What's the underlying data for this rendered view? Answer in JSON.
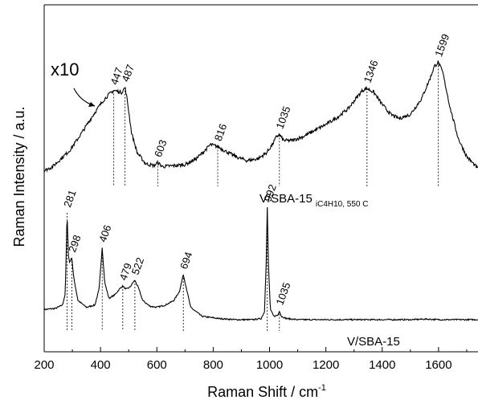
{
  "chart_data": {
    "type": "line",
    "xlabel_main": "Raman Shift / cm",
    "xlabel_sup": "-1",
    "ylabel": "Raman Intensity / a.u.",
    "xlim": [
      200,
      1740
    ],
    "x_ticks": [
      200,
      400,
      600,
      800,
      1000,
      1200,
      1400,
      1600
    ],
    "y_ticks_shown": false,
    "multiplier_label": "x10",
    "series": [
      {
        "name": "V/SBA-15",
        "subscript": "",
        "x": [
          200,
          240,
          265,
          275,
          281,
          286,
          290,
          298,
          305,
          320,
          350,
          380,
          395,
          406,
          415,
          430,
          450,
          470,
          479,
          490,
          505,
          515,
          522,
          535,
          550,
          575,
          600,
          630,
          660,
          680,
          694,
          705,
          720,
          760,
          820,
          880,
          940,
          970,
          982,
          988,
          992,
          996,
          1003,
          1015,
          1030,
          1035,
          1042,
          1060,
          1100,
          1200,
          1300,
          1400,
          1500,
          1560,
          1600,
          1700,
          1740
        ],
        "y": [
          0.14,
          0.15,
          0.18,
          0.28,
          1.0,
          0.62,
          0.56,
          0.6,
          0.42,
          0.22,
          0.16,
          0.18,
          0.32,
          0.69,
          0.38,
          0.24,
          0.27,
          0.33,
          0.35,
          0.32,
          0.34,
          0.38,
          0.4,
          0.33,
          0.22,
          0.17,
          0.16,
          0.18,
          0.22,
          0.3,
          0.45,
          0.33,
          0.16,
          0.08,
          0.06,
          0.05,
          0.05,
          0.06,
          0.12,
          0.55,
          1.05,
          0.55,
          0.14,
          0.08,
          0.09,
          0.13,
          0.08,
          0.06,
          0.05,
          0.05,
          0.05,
          0.05,
          0.05,
          0.055,
          0.05,
          0.05,
          0.05
        ],
        "peaks": [
          281,
          298,
          406,
          479,
          522,
          694,
          992,
          1035
        ]
      },
      {
        "name": "V/SBA-15",
        "subscript": "iC4H10, 550 C",
        "x": [
          200,
          230,
          260,
          290,
          320,
          350,
          380,
          410,
          430,
          447,
          460,
          475,
          487,
          495,
          510,
          530,
          560,
          590,
          603,
          620,
          660,
          700,
          740,
          770,
          790,
          816,
          840,
          880,
          920,
          960,
          990,
          1010,
          1025,
          1035,
          1050,
          1080,
          1120,
          1160,
          1200,
          1240,
          1280,
          1310,
          1330,
          1346,
          1370,
          1400,
          1430,
          1460,
          1500,
          1540,
          1570,
          1585,
          1599,
          1615,
          1640,
          1670,
          1700,
          1740
        ],
        "y": [
          0.1,
          0.14,
          0.22,
          0.3,
          0.42,
          0.55,
          0.68,
          0.8,
          0.86,
          0.9,
          0.89,
          0.88,
          0.93,
          0.8,
          0.48,
          0.28,
          0.17,
          0.15,
          0.18,
          0.14,
          0.15,
          0.16,
          0.22,
          0.3,
          0.36,
          0.34,
          0.3,
          0.24,
          0.2,
          0.22,
          0.28,
          0.36,
          0.44,
          0.46,
          0.4,
          0.4,
          0.44,
          0.5,
          0.56,
          0.63,
          0.72,
          0.83,
          0.9,
          0.92,
          0.88,
          0.76,
          0.66,
          0.62,
          0.66,
          0.82,
          1.02,
          1.14,
          1.18,
          1.08,
          0.74,
          0.42,
          0.24,
          0.12
        ],
        "peaks": [
          447,
          487,
          603,
          816,
          1035,
          1346,
          1599
        ]
      }
    ],
    "peak_labels": {
      "bottom": [
        "281",
        "298",
        "406",
        "479",
        "522",
        "694",
        "992",
        "1035"
      ],
      "top": [
        "447",
        "487",
        "603",
        "816",
        "1035",
        "1346",
        "1599"
      ]
    }
  }
}
